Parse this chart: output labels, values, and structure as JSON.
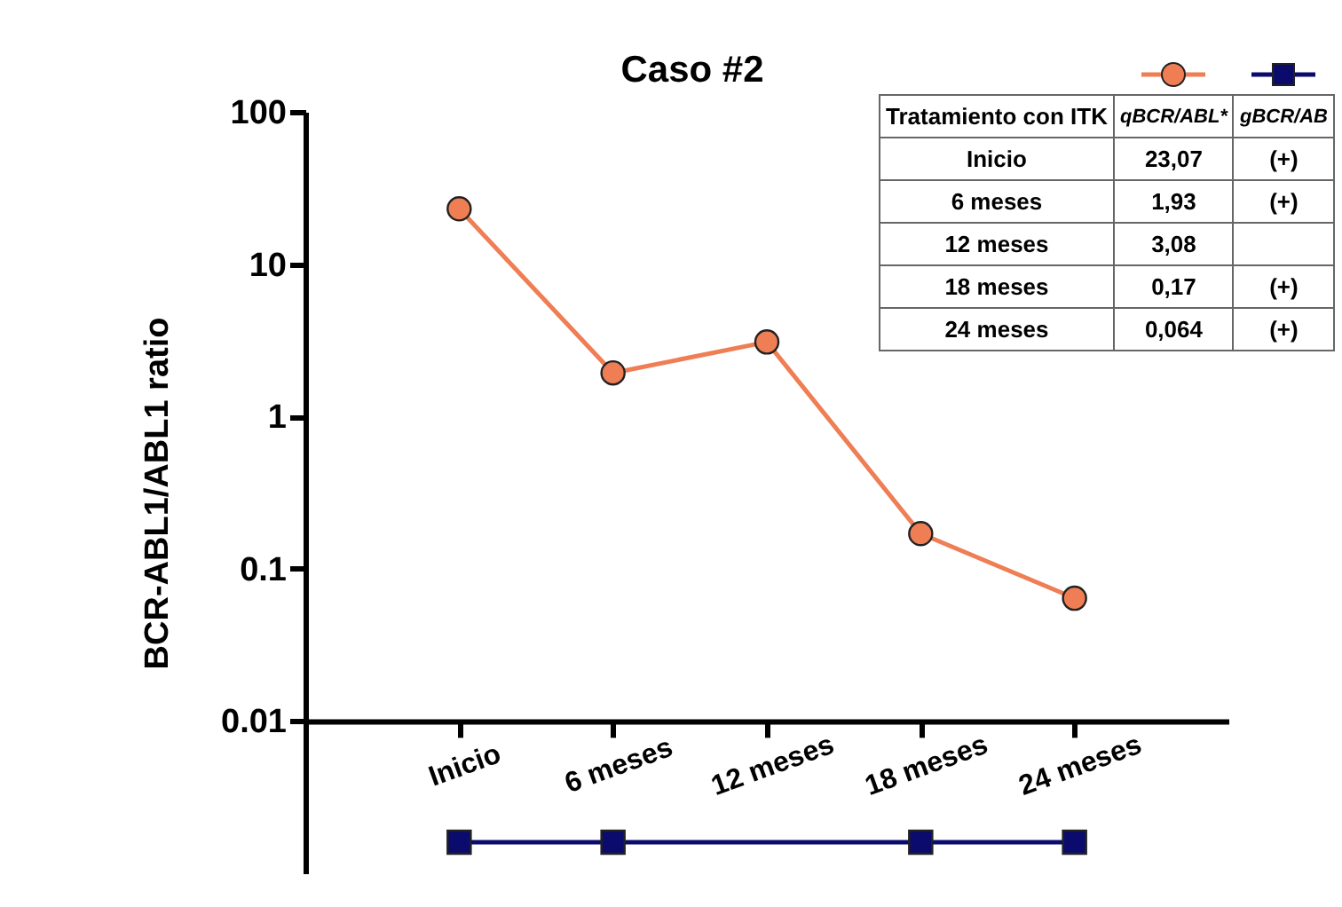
{
  "chart_data": [
    {
      "type": "line",
      "title": "Caso #2",
      "ylabel": "BCR-ABL1/ABL1 ratio",
      "categories": [
        "Inicio",
        "6 meses",
        "12 meses",
        "18 meses",
        "24 meses"
      ],
      "log": "y",
      "ylim": [
        0.001,
        100
      ],
      "yticks": [
        100,
        10,
        1,
        0.1,
        0.01
      ],
      "grid": false,
      "series": [
        {
          "color": "#ef7e55",
          "marker": "circle",
          "values": [
            23.07,
            1.93,
            3.08,
            0.17,
            0.064
          ]
        },
        {
          "color": "#0b0b6e",
          "marker": "square",
          "values": [
            0.0016,
            0.0016,
            null,
            0.0016,
            0.0016
          ]
        }
      ]
    },
    {
      "type": "heatmap",
      "ylabel": "Tratamiento con ITK",
      "categories": [
        "qBCR/ABL*",
        "gBCR/AB"
      ],
      "y_categories": [
        "Inicio",
        "6 meses",
        "12 meses",
        "18 meses",
        "24 meses"
      ],
      "cells": [
        [
          null,
          null
        ],
        [
          null,
          null
        ],
        [
          null,
          null
        ],
        [
          null,
          null
        ],
        [
          null,
          null
        ]
      ],
      "cell_labels": [
        [
          "23,07",
          "(+)"
        ],
        [
          "1,93",
          "(+)"
        ],
        [
          "3,08",
          null
        ],
        [
          "0,17",
          "(+)"
        ],
        [
          "0,064",
          "(+)"
        ]
      ]
    }
  ]
}
